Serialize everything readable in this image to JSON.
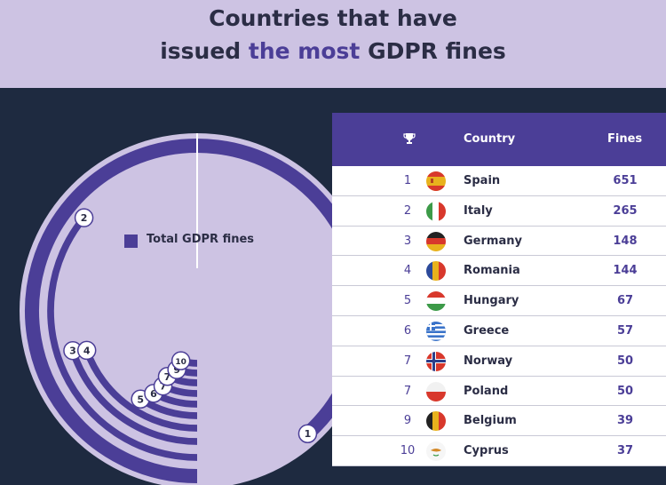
{
  "header": {
    "title_line1": "Countries that have",
    "title_line2_prefix": "issued ",
    "title_line2_highlight": "the most",
    "title_line2_suffix": " GDPR fines"
  },
  "legend": {
    "label": "Total GDPR fines"
  },
  "table": {
    "col_icon": "trophy-icon",
    "col_country": "Country",
    "col_fines": "Fines"
  },
  "colors": {
    "accent": "#4b3e97",
    "header_bg": "#cdc3e3",
    "page_bg": "#1e2a40",
    "disc": "#cdc3e3"
  },
  "chart_data": {
    "type": "table",
    "title": "Countries that have issued the most GDPR fines",
    "series": [
      {
        "name": "Total GDPR fines",
        "values": [
          651,
          265,
          148,
          144,
          67,
          57,
          50,
          50,
          39,
          37
        ]
      }
    ],
    "categories": [
      "Spain",
      "Italy",
      "Germany",
      "Romania",
      "Hungary",
      "Greece",
      "Norway",
      "Poland",
      "Belgium",
      "Cyprus"
    ],
    "rows": [
      {
        "rank": "1",
        "country": "Spain",
        "fines": "651",
        "flag": "spain-flag-icon"
      },
      {
        "rank": "2",
        "country": "Italy",
        "fines": "265",
        "flag": "italy-flag-icon"
      },
      {
        "rank": "3",
        "country": "Germany",
        "fines": "148",
        "flag": "germany-flag-icon"
      },
      {
        "rank": "4",
        "country": "Romania",
        "fines": "144",
        "flag": "romania-flag-icon"
      },
      {
        "rank": "5",
        "country": "Hungary",
        "fines": "67",
        "flag": "hungary-flag-icon"
      },
      {
        "rank": "6",
        "country": "Greece",
        "fines": "57",
        "flag": "greece-flag-icon"
      },
      {
        "rank": "7",
        "country": "Norway",
        "fines": "50",
        "flag": "norway-flag-icon"
      },
      {
        "rank": "7",
        "country": "Poland",
        "fines": "50",
        "flag": "poland-flag-icon"
      },
      {
        "rank": "9",
        "country": "Belgium",
        "fines": "39",
        "flag": "belgium-flag-icon"
      },
      {
        "rank": "10",
        "country": "Cyprus",
        "fines": "37",
        "flag": "cyprus-flag-icon"
      }
    ]
  }
}
